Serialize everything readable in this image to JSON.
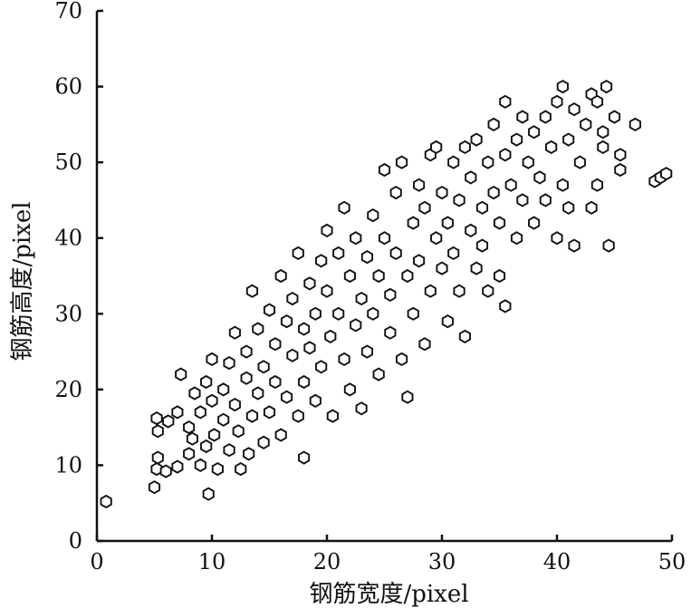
{
  "chart_data": {
    "type": "scatter",
    "title": "",
    "xlabel": "钢筋宽度/pixel",
    "ylabel": "钢筋高度/pixel",
    "xlim": [
      0,
      50
    ],
    "ylim": [
      0,
      70
    ],
    "xticks": [
      0,
      10,
      20,
      30,
      40,
      50
    ],
    "yticks": [
      0,
      10,
      20,
      30,
      40,
      50,
      60,
      70
    ],
    "grid": false,
    "legend": "none",
    "marker": "open hexagon",
    "marker_color": "#111111",
    "series": [
      {
        "points": [
          [
            0.8,
            5.2
          ],
          [
            5.0,
            7.1
          ],
          [
            9.7,
            6.2
          ],
          [
            5.2,
            9.5
          ],
          [
            5.3,
            11.0
          ],
          [
            5.2,
            16.2
          ],
          [
            5.3,
            14.5
          ],
          [
            6.2,
            15.8
          ],
          [
            6.0,
            9.2
          ],
          [
            7.0,
            9.8
          ],
          [
            7.3,
            22.0
          ],
          [
            7.0,
            17.0
          ],
          [
            8.0,
            15.0
          ],
          [
            8.0,
            11.5
          ],
          [
            8.3,
            13.5
          ],
          [
            8.5,
            19.5
          ],
          [
            9.0,
            17.0
          ],
          [
            9.0,
            10.0
          ],
          [
            9.5,
            21.0
          ],
          [
            9.5,
            12.5
          ],
          [
            10.0,
            24.0
          ],
          [
            10.0,
            18.5
          ],
          [
            10.2,
            14.0
          ],
          [
            10.5,
            9.5
          ],
          [
            11.0,
            20.0
          ],
          [
            11.0,
            16.0
          ],
          [
            11.5,
            12.0
          ],
          [
            11.5,
            23.5
          ],
          [
            12.0,
            27.5
          ],
          [
            12.0,
            18.0
          ],
          [
            12.3,
            14.5
          ],
          [
            12.5,
            9.5
          ],
          [
            13.0,
            21.5
          ],
          [
            13.0,
            25.0
          ],
          [
            13.2,
            11.5
          ],
          [
            13.5,
            16.5
          ],
          [
            13.5,
            33.0
          ],
          [
            14.0,
            19.5
          ],
          [
            14.0,
            28.0
          ],
          [
            14.5,
            13.0
          ],
          [
            14.5,
            23.0
          ],
          [
            15.0,
            30.5
          ],
          [
            15.0,
            17.0
          ],
          [
            15.5,
            26.0
          ],
          [
            15.5,
            21.0
          ],
          [
            16.0,
            14.0
          ],
          [
            16.0,
            35.0
          ],
          [
            16.5,
            29.0
          ],
          [
            16.5,
            19.0
          ],
          [
            17.0,
            24.5
          ],
          [
            17.0,
            32.0
          ],
          [
            17.5,
            16.5
          ],
          [
            17.5,
            38.0
          ],
          [
            18.0,
            28.0
          ],
          [
            18.0,
            21.0
          ],
          [
            18.0,
            11.0
          ],
          [
            18.5,
            34.0
          ],
          [
            18.5,
            25.5
          ],
          [
            19.0,
            30.0
          ],
          [
            19.0,
            18.5
          ],
          [
            19.5,
            37.0
          ],
          [
            19.5,
            23.0
          ],
          [
            20.0,
            41.0
          ],
          [
            20.0,
            33.0
          ],
          [
            20.3,
            27.0
          ],
          [
            20.5,
            16.5
          ],
          [
            21.0,
            30.0
          ],
          [
            21.0,
            38.0
          ],
          [
            21.5,
            24.0
          ],
          [
            21.5,
            44.0
          ],
          [
            22.0,
            35.0
          ],
          [
            22.0,
            20.0
          ],
          [
            22.5,
            28.5
          ],
          [
            22.5,
            40.0
          ],
          [
            23.0,
            32.0
          ],
          [
            23.0,
            17.5
          ],
          [
            23.5,
            37.5
          ],
          [
            23.5,
            25.0
          ],
          [
            24.0,
            43.0
          ],
          [
            24.0,
            30.0
          ],
          [
            24.5,
            22.0
          ],
          [
            24.5,
            35.0
          ],
          [
            25.0,
            49.0
          ],
          [
            25.0,
            40.0
          ],
          [
            25.5,
            27.5
          ],
          [
            25.5,
            32.5
          ],
          [
            26.0,
            46.0
          ],
          [
            26.0,
            38.0
          ],
          [
            26.5,
            50.0
          ],
          [
            26.5,
            24.0
          ],
          [
            27.0,
            19.0
          ],
          [
            27.0,
            35.0
          ],
          [
            27.5,
            42.0
          ],
          [
            27.5,
            30.0
          ],
          [
            28.0,
            47.0
          ],
          [
            28.0,
            37.0
          ],
          [
            28.5,
            26.0
          ],
          [
            28.5,
            44.0
          ],
          [
            29.0,
            51.0
          ],
          [
            29.0,
            33.0
          ],
          [
            29.5,
            40.0
          ],
          [
            29.5,
            52.0
          ],
          [
            30.0,
            36.0
          ],
          [
            30.0,
            46.0
          ],
          [
            30.5,
            29.0
          ],
          [
            30.5,
            42.0
          ],
          [
            31.0,
            50.0
          ],
          [
            31.0,
            38.0
          ],
          [
            31.5,
            45.0
          ],
          [
            31.5,
            33.0
          ],
          [
            32.0,
            52.0
          ],
          [
            32.0,
            27.0
          ],
          [
            32.5,
            41.0
          ],
          [
            32.5,
            48.0
          ],
          [
            33.0,
            36.0
          ],
          [
            33.0,
            53.0
          ],
          [
            33.5,
            44.0
          ],
          [
            33.5,
            39.0
          ],
          [
            34.0,
            50.0
          ],
          [
            34.0,
            33.0
          ],
          [
            34.5,
            46.0
          ],
          [
            34.5,
            55.0
          ],
          [
            35.0,
            42.0
          ],
          [
            35.0,
            35.0
          ],
          [
            35.5,
            31.0
          ],
          [
            35.5,
            51.0
          ],
          [
            35.5,
            58.0
          ],
          [
            36.0,
            47.0
          ],
          [
            36.5,
            53.0
          ],
          [
            36.5,
            40.0
          ],
          [
            37.0,
            56.0
          ],
          [
            37.0,
            45.0
          ],
          [
            37.5,
            50.0
          ],
          [
            38.0,
            54.0
          ],
          [
            38.0,
            42.0
          ],
          [
            38.5,
            48.0
          ],
          [
            39.0,
            56.0
          ],
          [
            39.0,
            45.0
          ],
          [
            39.5,
            52.0
          ],
          [
            40.0,
            40.0
          ],
          [
            40.0,
            58.0
          ],
          [
            40.5,
            47.0
          ],
          [
            40.5,
            60.0
          ],
          [
            41.0,
            53.0
          ],
          [
            41.0,
            44.0
          ],
          [
            41.5,
            57.0
          ],
          [
            41.5,
            39.0
          ],
          [
            42.0,
            50.0
          ],
          [
            42.5,
            55.0
          ],
          [
            43.0,
            44.0
          ],
          [
            43.0,
            59.0
          ],
          [
            43.5,
            47.0
          ],
          [
            43.5,
            58.0
          ],
          [
            44.0,
            52.0
          ],
          [
            44.0,
            54.0
          ],
          [
            44.3,
            60.0
          ],
          [
            44.5,
            39.0
          ],
          [
            45.0,
            56.0
          ],
          [
            45.5,
            49.0
          ],
          [
            45.5,
            51.0
          ],
          [
            46.8,
            55.0
          ],
          [
            48.5,
            47.5
          ],
          [
            49.0,
            48.0
          ],
          [
            49.5,
            48.5
          ]
        ]
      }
    ]
  }
}
